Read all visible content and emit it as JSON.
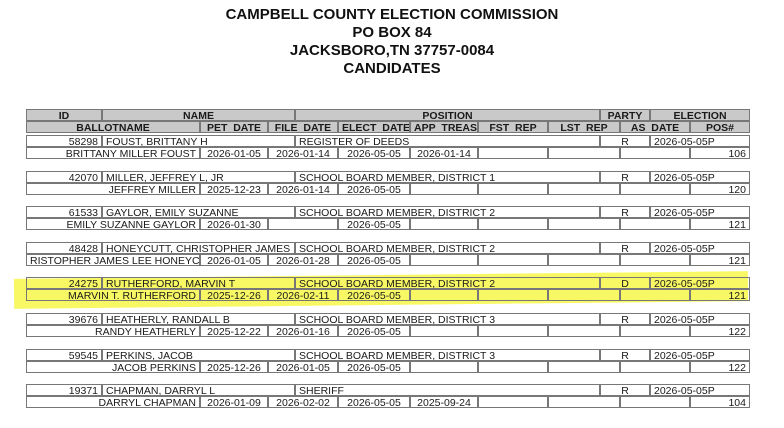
{
  "header": {
    "title": "CAMPBELL COUNTY ELECTION COMMISSION",
    "address": "PO BOX 84",
    "city": "JACKSBORO,TN 37757-0084",
    "subtitle": "CANDIDATES"
  },
  "table": {
    "header_top": [
      "ID",
      "NAME",
      "POSITION",
      "PARTY",
      "ELECTION"
    ],
    "header_bottom": [
      "BALLOTNAME",
      "PET_DATE",
      "FILE_DATE",
      "ELECT_DATE",
      "APP_TREAS",
      "FST_REP",
      "LST_REP",
      "AS_DATE",
      "POS#"
    ],
    "records": [
      {
        "id": "58298",
        "name": "FOUST, BRITTANY H",
        "position": "REGISTER OF DEEDS",
        "party": "R",
        "election": "2026-05-05P",
        "ballotname": "BRITTANY MILLER FOUST",
        "pet_date": "2026-01-05",
        "file_date": "2026-01-14",
        "elect_date": "2026-05-05",
        "app_treas": "2026-01-14",
        "pos": "106"
      },
      {
        "id": "42070",
        "name": "MILLER, JEFFREY L, JR",
        "position": "SCHOOL BOARD MEMBER, DISTRICT 1",
        "party": "R",
        "election": "2026-05-05P",
        "ballotname": "JEFFREY MILLER",
        "pet_date": "2025-12-23",
        "file_date": "2026-01-14",
        "elect_date": "2026-05-05",
        "pos": "120"
      },
      {
        "id": "61533",
        "name": "GAYLOR, EMILY SUZANNE",
        "position": "SCHOOL BOARD MEMBER, DISTRICT 2",
        "party": "R",
        "election": "2026-05-05P",
        "ballotname": "EMILY SUZANNE GAYLOR",
        "pet_date": "2026-01-30",
        "elect_date": "2026-05-05",
        "pos": "121"
      },
      {
        "id": "48428",
        "name": "HONEYCUTT, CHRISTOPHER JAMES",
        "position": "SCHOOL BOARD MEMBER, DISTRICT 2",
        "party": "R",
        "election": "2026-05-05P",
        "ballotname": "RISTOPHER JAMES LEE HONEYC",
        "pet_date": "2026-01-05",
        "file_date": "2026-01-28",
        "elect_date": "2026-05-05",
        "pos": "121"
      },
      {
        "id": "24275",
        "name": "RUTHERFORD, MARVIN T",
        "position": "SCHOOL BOARD MEMBER, DISTRICT 2",
        "party": "D",
        "election": "2026-05-05P",
        "ballotname": "MARVIN T. RUTHERFORD",
        "pet_date": "2025-12-26",
        "file_date": "2026-02-11",
        "elect_date": "2026-05-05",
        "pos": "121"
      },
      {
        "id": "39676",
        "name": "HEATHERLY, RANDALL B",
        "position": "SCHOOL BOARD MEMBER, DISTRICT 3",
        "party": "R",
        "election": "2026-05-05P",
        "ballotname": "RANDY HEATHERLY",
        "pet_date": "2025-12-22",
        "file_date": "2026-01-16",
        "elect_date": "2026-05-05",
        "pos": "122"
      },
      {
        "id": "59545",
        "name": "PERKINS, JACOB",
        "position": "SCHOOL BOARD MEMBER, DISTRICT 3",
        "party": "R",
        "election": "2026-05-05P",
        "ballotname": "JACOB  PERKINS",
        "pet_date": "2025-12-26",
        "file_date": "2026-01-05",
        "elect_date": "2026-05-05",
        "pos": "122"
      },
      {
        "id": "19371",
        "name": "CHAPMAN, DARRYL L",
        "position": "SHERIFF",
        "party": "R",
        "election": "2026-05-05P",
        "ballotname": "DARRYL CHAPMAN",
        "pet_date": "2026-01-09",
        "file_date": "2026-02-02",
        "elect_date": "2026-05-05",
        "app_treas": "2025-09-24",
        "pos": "104"
      }
    ]
  }
}
